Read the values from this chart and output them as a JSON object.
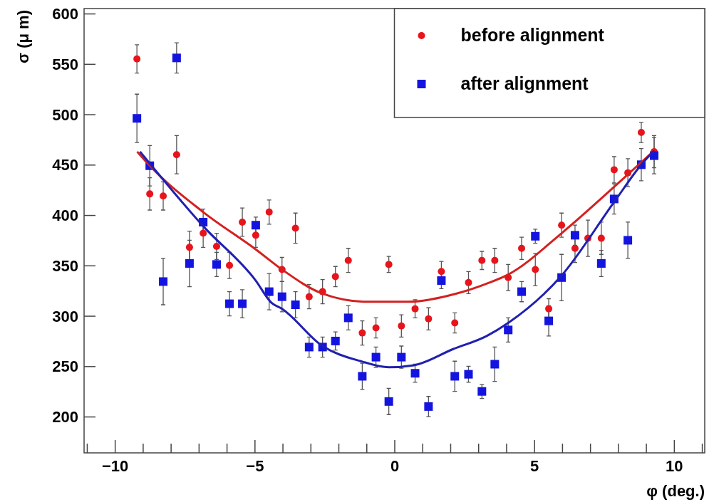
{
  "chart_data": {
    "type": "scatter",
    "xlabel": "φ (deg.)",
    "ylabel": "σ (μ m)",
    "xlim": [
      -11.1,
      11.1
    ],
    "ylim": [
      164,
      605
    ],
    "xticks": [
      {
        "value": -11,
        "label": null
      },
      {
        "value": -10,
        "label": "−10"
      },
      {
        "value": -9,
        "label": null
      },
      {
        "value": -8,
        "label": null
      },
      {
        "value": -7,
        "label": null
      },
      {
        "value": -6,
        "label": null
      },
      {
        "value": -5,
        "label": "−5"
      },
      {
        "value": -4,
        "label": null
      },
      {
        "value": -3,
        "label": null
      },
      {
        "value": -2,
        "label": null
      },
      {
        "value": -1,
        "label": null
      },
      0,
      {
        "value": 1,
        "label": null
      },
      {
        "value": 2,
        "label": null
      },
      {
        "value": 3,
        "label": null
      },
      {
        "value": 4,
        "label": null
      },
      5,
      {
        "value": 6,
        "label": null
      },
      {
        "value": 7,
        "label": null
      },
      {
        "value": 8,
        "label": null
      },
      {
        "value": 9,
        "label": null
      },
      10,
      {
        "value": 11,
        "label": null
      }
    ],
    "yticks": [
      200,
      250,
      300,
      350,
      400,
      450,
      500,
      550,
      600
    ],
    "x": [
      -9.21,
      -8.75,
      -8.27,
      -7.79,
      -7.33,
      -6.84,
      -6.36,
      -5.9,
      -5.44,
      -4.96,
      -4.48,
      -4.02,
      -3.54,
      -3.05,
      -2.57,
      -2.11,
      -1.65,
      -1.15,
      -0.66,
      -0.2,
      0.25,
      0.74,
      1.22,
      1.68,
      2.16,
      2.65,
      3.13,
      3.59,
      4.07,
      4.55,
      5.04,
      5.52,
      5.98,
      6.46,
      6.92,
      7.4,
      7.86,
      8.35,
      8.83,
      9.29
    ],
    "grid": false,
    "legend": "top right",
    "series": [
      {
        "name": "before alignment",
        "color": "#e8141c",
        "marker": "circle",
        "values": [
          555,
          421,
          419,
          460,
          368,
          382,
          369,
          350,
          393,
          380,
          403,
          346,
          387,
          319,
          324,
          339,
          355,
          283,
          288,
          351,
          290,
          307,
          297,
          344,
          293,
          333,
          355,
          355,
          338,
          367,
          346,
          307,
          390,
          367,
          377,
          377,
          445,
          442,
          482,
          463
        ],
        "errors": [
          14,
          16,
          14,
          19,
          16,
          14,
          13,
          13,
          14,
          12,
          12,
          12,
          15,
          12,
          12,
          10,
          12,
          12,
          10,
          8,
          11,
          9,
          11,
          10,
          10,
          11,
          9,
          12,
          13,
          11,
          16,
          10,
          12,
          14,
          18,
          16,
          13,
          14,
          10,
          16
        ]
      },
      {
        "name": "after alignment",
        "color": "#1414e0",
        "marker": "square",
        "values": [
          496,
          449,
          334,
          556,
          352,
          393,
          351,
          312,
          312,
          390,
          324,
          319,
          311,
          269,
          269,
          275,
          298,
          240,
          259,
          215,
          259,
          243,
          210,
          335,
          240,
          242,
          225,
          252,
          286,
          324,
          379,
          295,
          338,
          380,
          null,
          352,
          416,
          375,
          450,
          459
        ],
        "errors": [
          24,
          20,
          23,
          15,
          23,
          13,
          12,
          12,
          14,
          8,
          18,
          15,
          13,
          10,
          10,
          9,
          12,
          13,
          10,
          13,
          11,
          9,
          10,
          8,
          15,
          8,
          7,
          17,
          12,
          10,
          7,
          15,
          23,
          10,
          null,
          13,
          15,
          18,
          16,
          18
        ]
      },
      {
        "type": "line",
        "color": "#d42020",
        "marker": "none",
        "x": [
          -9.2,
          -8.75,
          -6.84,
          -4.96,
          -4.02,
          -2.57,
          -1,
          0.5,
          2.2,
          3.3,
          4.07,
          5.98,
          7.86,
          9.29
        ],
        "values": [
          463,
          449,
          403,
          366,
          346,
          322,
          314,
          314,
          322,
          332,
          341,
          382,
          428,
          464
        ]
      },
      {
        "type": "line",
        "color": "#2020b0",
        "marker": "none",
        "x": [
          -9.1,
          -6.84,
          -4.96,
          -4.4,
          -4.02,
          -2.57,
          -1.2,
          -0.2,
          0.7,
          2.1,
          3.3,
          4.07,
          5.98,
          7.86,
          8.83,
          9.29
        ],
        "values": [
          463,
          389,
          335,
          313,
          307,
          270,
          255,
          249,
          251,
          267,
          280,
          293,
          340,
          413,
          450,
          464
        ]
      }
    ]
  }
}
